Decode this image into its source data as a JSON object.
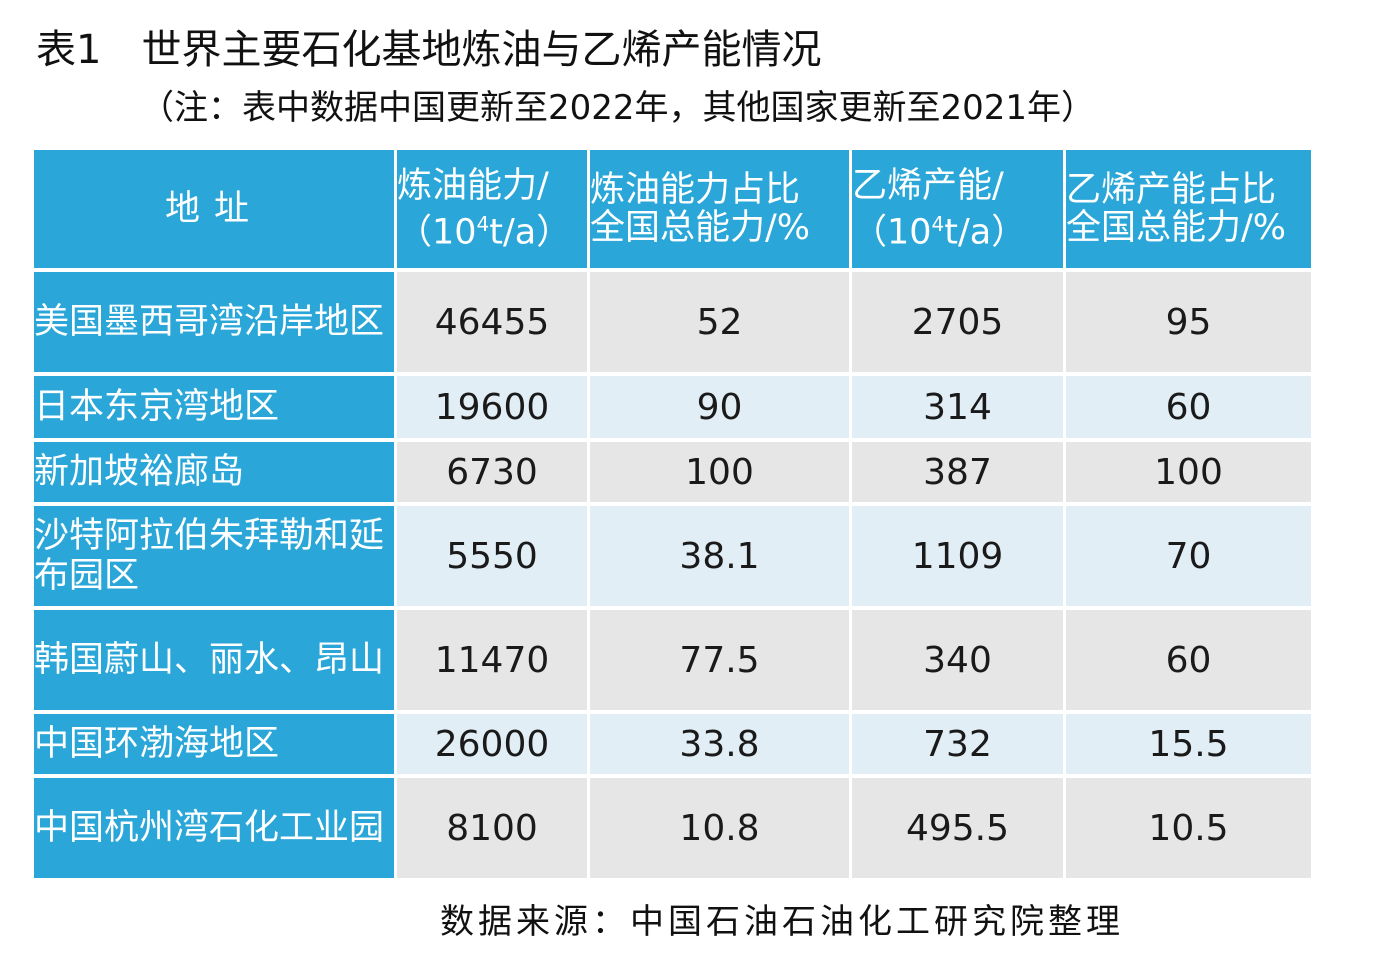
{
  "title": {
    "label": "表1",
    "text": "世界主要石化基地炼油与乙烯产能情况"
  },
  "note": "（注：表中数据中国更新至2022年，其他国家更新至2021年）",
  "table": {
    "headers": {
      "address": "地址",
      "refining_capacity": {
        "line1": "炼油能力/",
        "line2a": "（10",
        "line2sup": "4",
        "line2b": "t/a）"
      },
      "refining_share": {
        "line1": "炼油能力占比",
        "line2": "全国总能力/%"
      },
      "ethylene_capacity": {
        "line1": "乙烯产能/",
        "line2a": "（10",
        "line2sup": "4",
        "line2b": "t/a）"
      },
      "ethylene_share": {
        "line1": "乙烯产能占比",
        "line2": "全国总能力/%"
      }
    },
    "rows": [
      {
        "address": "美国墨西哥湾沿岸地区",
        "refining": "46455",
        "refining_share": "52",
        "ethylene": "2705",
        "ethylene_share": "95"
      },
      {
        "address": "日本东京湾地区",
        "refining": "19600",
        "refining_share": "90",
        "ethylene": "314",
        "ethylene_share": "60"
      },
      {
        "address": "新加坡裕廊岛",
        "refining": "6730",
        "refining_share": "100",
        "ethylene": "387",
        "ethylene_share": "100"
      },
      {
        "address": "沙特阿拉伯朱拜勒和延布园区",
        "refining": "5550",
        "refining_share": "38.1",
        "ethylene": "1109",
        "ethylene_share": "70"
      },
      {
        "address": "韩国蔚山、丽水、昂山",
        "refining": "11470",
        "refining_share": "77.5",
        "ethylene": "340",
        "ethylene_share": "60"
      },
      {
        "address": "中国环渤海地区",
        "refining": "26000",
        "refining_share": "33.8",
        "ethylene": "732",
        "ethylene_share": "15.5"
      },
      {
        "address": "中国杭州湾石化工业园",
        "refining": "8100",
        "refining_share": "10.8",
        "ethylene": "495.5",
        "ethylene_share": "10.5"
      }
    ]
  },
  "source": "数据来源：中国石油石油化工研究院整理",
  "colors": {
    "header_bg": "#2aa7d8",
    "row_gray": "#e6e6e6",
    "row_light": "#e2eef6"
  }
}
